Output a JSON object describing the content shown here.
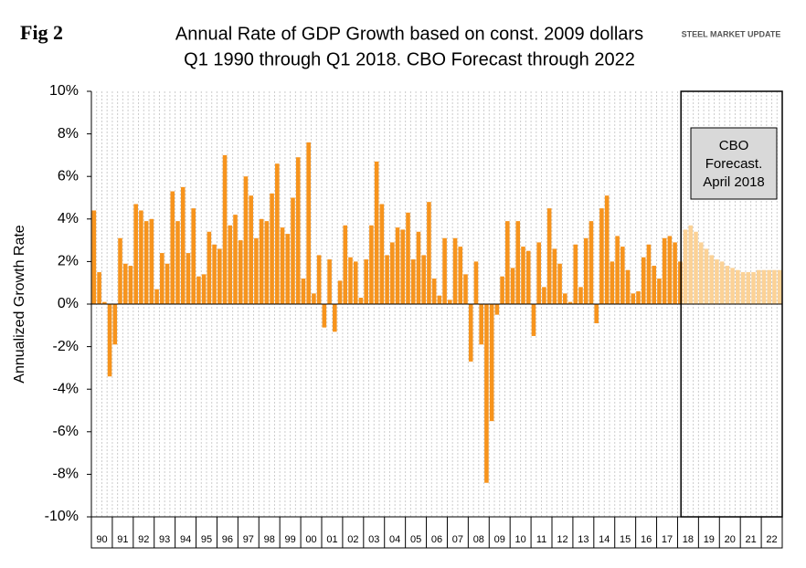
{
  "chart_data": {
    "type": "bar",
    "fig_label": "Fig 2",
    "title": [
      "Annual Rate of GDP Growth based on const. 2009 dollars",
      "Q1 1990 through Q1 2018. CBO Forecast through 2022"
    ],
    "logo": "STEEL MARKET UPDATE",
    "y_label": "Annualized Growth Rate",
    "annotation": [
      "CBO",
      "Forecast.",
      "April 2018"
    ],
    "categories": [
      "90",
      null,
      null,
      null,
      "91",
      null,
      null,
      null,
      "92",
      null,
      null,
      null,
      "93",
      null,
      null,
      null,
      "94",
      null,
      null,
      null,
      "95",
      null,
      null,
      null,
      "96",
      null,
      null,
      null,
      "97",
      null,
      null,
      null,
      "98",
      null,
      null,
      null,
      "99",
      null,
      null,
      null,
      "00",
      null,
      null,
      null,
      "01",
      null,
      null,
      null,
      "02",
      null,
      null,
      null,
      "03",
      null,
      null,
      null,
      "04",
      null,
      null,
      null,
      "05",
      null,
      null,
      null,
      "06",
      null,
      null,
      null,
      "07",
      null,
      null,
      null,
      "08",
      null,
      null,
      null,
      "09",
      null,
      null,
      null,
      "10",
      null,
      null,
      null,
      "11",
      null,
      null,
      null,
      "12",
      null,
      null,
      null,
      "13",
      null,
      null,
      null,
      "14",
      null,
      null,
      null,
      "15",
      null,
      null,
      null,
      "16",
      null,
      null,
      null,
      "17",
      null,
      null,
      null,
      "18",
      null,
      null,
      null,
      "19",
      null,
      null,
      null,
      "20",
      null,
      null,
      null,
      "21",
      null,
      null,
      null,
      "22",
      null,
      null,
      null
    ],
    "series": [
      {
        "color": "#f7941d",
        "values": [
          4.4,
          1.5,
          0.1,
          -3.4,
          -1.9,
          3.1,
          1.9,
          1.8,
          4.7,
          4.4,
          3.9,
          4.0,
          0.7,
          2.4,
          1.9,
          5.3,
          3.9,
          5.5,
          2.4,
          4.5,
          1.3,
          1.4,
          3.4,
          2.8,
          2.6,
          7.0,
          3.7,
          4.2,
          3.0,
          6.0,
          5.1,
          3.1,
          4.0,
          3.9,
          5.2,
          6.6,
          3.6,
          3.3,
          5.0,
          6.9,
          1.2,
          7.6,
          0.5,
          2.3,
          -1.1,
          2.1,
          -1.3,
          1.1,
          3.7,
          2.2,
          2.0,
          0.3,
          2.1,
          3.7,
          6.7,
          4.7,
          2.3,
          2.9,
          3.6,
          3.5,
          4.3,
          2.1,
          3.4,
          2.3,
          4.8,
          1.2,
          0.4,
          3.1,
          0.2,
          3.1,
          2.7,
          1.4,
          -2.7,
          2.0,
          -1.9,
          -8.4,
          -5.5,
          -0.5,
          1.3,
          3.9,
          1.7,
          3.9,
          2.7,
          2.5,
          -1.5,
          2.9,
          0.8,
          4.5,
          2.6,
          1.9,
          0.5,
          0.1,
          2.8,
          0.8,
          3.1,
          3.9,
          -0.9,
          4.5,
          5.1,
          2.0,
          3.2,
          2.7,
          1.6,
          0.5,
          0.6,
          2.2,
          2.8,
          1.8,
          1.2,
          3.1,
          3.2,
          2.9,
          2.0,
          null,
          null,
          null,
          null,
          null,
          null,
          null,
          null,
          null,
          null,
          null,
          null,
          null,
          null,
          null,
          null,
          null,
          null,
          null
        ]
      },
      {
        "color": "#fcd296",
        "values": [
          null,
          null,
          null,
          null,
          null,
          null,
          null,
          null,
          null,
          null,
          null,
          null,
          null,
          null,
          null,
          null,
          null,
          null,
          null,
          null,
          null,
          null,
          null,
          null,
          null,
          null,
          null,
          null,
          null,
          null,
          null,
          null,
          null,
          null,
          null,
          null,
          null,
          null,
          null,
          null,
          null,
          null,
          null,
          null,
          null,
          null,
          null,
          null,
          null,
          null,
          null,
          null,
          null,
          null,
          null,
          null,
          null,
          null,
          null,
          null,
          null,
          null,
          null,
          null,
          null,
          null,
          null,
          null,
          null,
          null,
          null,
          null,
          null,
          null,
          null,
          null,
          null,
          null,
          null,
          null,
          null,
          null,
          null,
          null,
          null,
          null,
          null,
          null,
          null,
          null,
          null,
          null,
          null,
          null,
          null,
          null,
          null,
          null,
          null,
          null,
          null,
          null,
          null,
          null,
          null,
          null,
          null,
          null,
          null,
          null,
          null,
          null,
          null,
          3.5,
          3.7,
          3.4,
          2.9,
          2.6,
          2.3,
          2.1,
          2.0,
          1.8,
          1.7,
          1.6,
          1.5,
          1.5,
          1.5,
          1.6,
          1.6,
          1.6,
          1.6,
          1.6
        ]
      }
    ],
    "ylim": [
      -10,
      10
    ],
    "yticks": [
      {
        "value": -10,
        "label": "-10%"
      },
      {
        "value": -8,
        "label": "-8%"
      },
      {
        "value": -6,
        "label": "-6%"
      },
      {
        "value": -4,
        "label": "-4%"
      },
      {
        "value": -2,
        "label": "-2%"
      },
      {
        "value": 0,
        "label": "0%"
      },
      {
        "value": 2,
        "label": "2%"
      },
      {
        "value": 4,
        "label": "4%"
      },
      {
        "value": 6,
        "label": "6%"
      },
      {
        "value": 8,
        "label": "8%"
      },
      {
        "value": 10,
        "label": "10%"
      }
    ],
    "grid": true
  }
}
